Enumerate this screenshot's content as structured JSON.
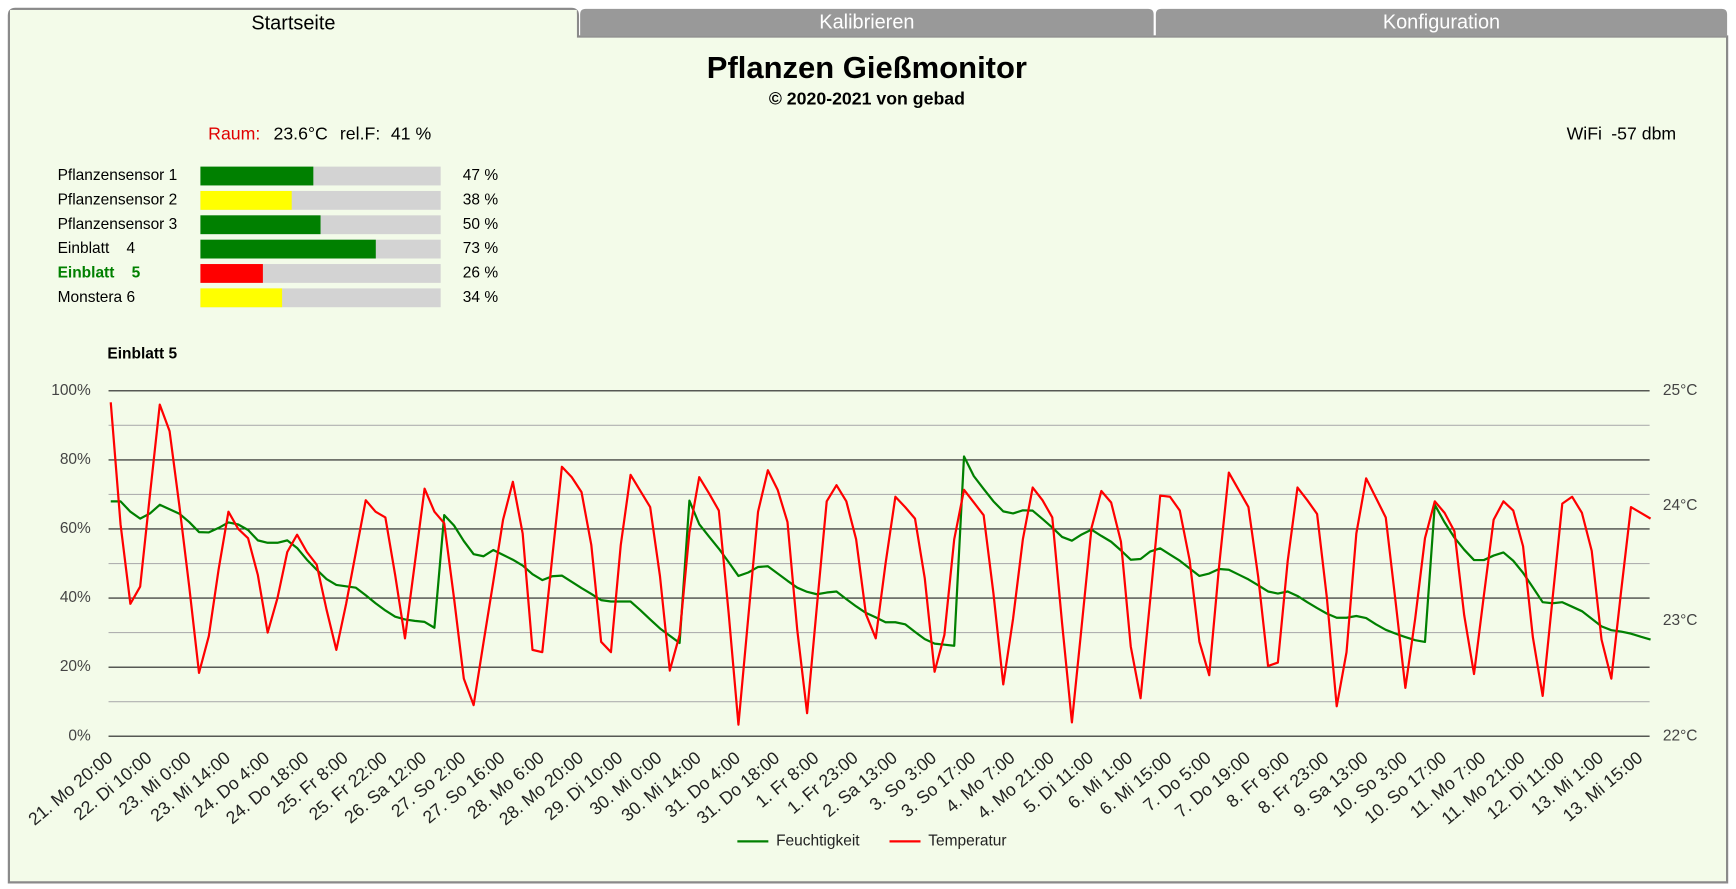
{
  "tabs": [
    "Startseite",
    "Kalibrieren",
    "Konfiguration"
  ],
  "header": {
    "title": "Pflanzen Gießmonitor",
    "subtitle": "© 2020-2021 von gebad"
  },
  "room": {
    "label": "Raum:",
    "temperature": "23.6°C",
    "humidity_label": "rel.F:",
    "humidity": "41 %"
  },
  "wifi": {
    "label": "WiFi",
    "value": "-57 dbm"
  },
  "sensors": [
    {
      "name": "Pflanzensensor 1",
      "value": 47,
      "value_label": "47 %",
      "color": "#008000"
    },
    {
      "name": "Pflanzensensor 2",
      "value": 38,
      "value_label": "38 %",
      "color": "#ffff00"
    },
    {
      "name": "Pflanzensensor 3",
      "value": 50,
      "value_label": "50 %",
      "color": "#008000"
    },
    {
      "name": "Einblatt    4",
      "value": 73,
      "value_label": "73 %",
      "color": "#008000"
    },
    {
      "name": "Einblatt    5",
      "value": 26,
      "value_label": "26 %",
      "color": "#ff0000"
    },
    {
      "name": "Monstera 6",
      "value": 34,
      "value_label": "34 %",
      "color": "#ffff00"
    }
  ],
  "chart_data": {
    "type": "line",
    "title": "Einblatt 5",
    "categories": [
      "21. Mo 20:00",
      null,
      null,
      null,
      "22. Di 10:00",
      null,
      null,
      null,
      "23. Mi 0:00",
      null,
      null,
      null,
      "23. Mi 14:00",
      null,
      null,
      null,
      "24. Do 4:00",
      null,
      null,
      null,
      "24. Do 18:00",
      null,
      null,
      null,
      "25. Fr 8:00",
      null,
      null,
      null,
      "25. Fr 22:00",
      null,
      null,
      null,
      "26. Sa 12:00",
      null,
      null,
      null,
      "27. So 2:00",
      null,
      null,
      null,
      "27. So 16:00",
      null,
      null,
      null,
      "28. Mo 6:00",
      null,
      null,
      null,
      "28. Mo 20:00",
      null,
      null,
      null,
      "29. Di 10:00",
      null,
      null,
      null,
      "30. Mi 0:00",
      null,
      null,
      null,
      "30. Mi 14:00",
      null,
      null,
      null,
      "31. Do 4:00",
      null,
      null,
      null,
      "31. Do 18:00",
      null,
      null,
      null,
      "1. Fr 8:00",
      null,
      null,
      null,
      "1. Fr 23:00",
      null,
      null,
      null,
      "2. Sa 13:00",
      null,
      null,
      null,
      "3. So 3:00",
      null,
      null,
      null,
      "3. So 17:00",
      null,
      null,
      null,
      "4. Mo 7:00",
      null,
      null,
      null,
      "4. Mo 21:00",
      null,
      null,
      null,
      "5. Di 11:00",
      null,
      null,
      null,
      "6. Mi 1:00",
      null,
      null,
      null,
      "6. Mi 15:00",
      null,
      null,
      null,
      "7. Do 5:00",
      null,
      null,
      null,
      "7. Do 19:00",
      null,
      null,
      null,
      "8. Fr 9:00",
      null,
      null,
      null,
      "8. Fr 23:00",
      null,
      null,
      null,
      "9. Sa 13:00",
      null,
      null,
      null,
      "10. So 3:00",
      null,
      null,
      null,
      "10. So 17:00",
      null,
      null,
      null,
      "11. Mo 7:00",
      null,
      null,
      null,
      "11. Mo 21:00",
      null,
      null,
      null,
      "12. Di 11:00",
      null,
      null,
      null,
      "13. Mi 1:00",
      null,
      null,
      null,
      "13. Mi 15:00",
      null
    ],
    "series": [
      {
        "name": "Feuchtigkeit",
        "color": "#008000",
        "axis": "y",
        "values": [
          68,
          68,
          65,
          63,
          64.5,
          67,
          65.7,
          64.4,
          62,
          59.1,
          59,
          60.3,
          61.9,
          61.3,
          59.7,
          56.7,
          56,
          56,
          56.7,
          54.5,
          51.1,
          48.2,
          45.5,
          43.8,
          43.4,
          43,
          40.8,
          38.5,
          36.4,
          34.6,
          33.8,
          33.4,
          33.1,
          31.4,
          64,
          61,
          56.5,
          52.7,
          52.1,
          53.9,
          52.5,
          51.1,
          49.4,
          46.9,
          45.2,
          46.3,
          46.5,
          44.7,
          42.9,
          41.2,
          39.4,
          39,
          39,
          39,
          36.5,
          33.8,
          31.2,
          29.1,
          27,
          68.2,
          61.4,
          57.8,
          54.3,
          50.4,
          46.4,
          47.4,
          49,
          49.2,
          47.1,
          45,
          43,
          41.8,
          41.1,
          41.6,
          41.9,
          39.7,
          37.6,
          35.7,
          34.4,
          33,
          33,
          32.4,
          30.2,
          28.1,
          26.8,
          26.5,
          26.2,
          81,
          75.3,
          71.6,
          68,
          65.1,
          64.5,
          65.4,
          65.3,
          62.9,
          60.4,
          57.7,
          56.6,
          58.4,
          59.8,
          58,
          56.3,
          53.8,
          51.1,
          51.3,
          53.5,
          54.4,
          52.6,
          50.8,
          48.6,
          46.4,
          47.1,
          48.4,
          48.2,
          46.8,
          45.4,
          43.7,
          41.9,
          41.3,
          41.9,
          40.6,
          38.8,
          37.1,
          35.5,
          34.3,
          34.3,
          34.8,
          34.2,
          32.4,
          30.8,
          29.7,
          28.7,
          27.8,
          27.3,
          67,
          61.9,
          57.5,
          54,
          51,
          51,
          52.3,
          53.2,
          50.8,
          47.3,
          43.1,
          38.8,
          38.5,
          38.8,
          37.5,
          36.2,
          34,
          31.8,
          30.7,
          30.3,
          29.7,
          28.8,
          28
        ]
      },
      {
        "name": "Temperatur",
        "color": "#ff0000",
        "axis": "y2",
        "values": [
          24.9,
          23.84,
          23.15,
          23.3,
          24.1,
          24.88,
          24.65,
          24.0,
          23.3,
          22.55,
          22.87,
          23.45,
          23.95,
          23.8,
          23.72,
          23.4,
          22.9,
          23.2,
          23.6,
          23.75,
          23.6,
          23.49,
          23.1,
          22.75,
          23.15,
          23.6,
          24.05,
          23.95,
          23.9,
          23.4,
          22.85,
          23.5,
          24.15,
          23.95,
          23.85,
          23.2,
          22.5,
          22.27,
          22.81,
          23.34,
          23.88,
          24.21,
          23.76,
          22.75,
          22.73,
          23.54,
          24.34,
          24.25,
          24.12,
          23.66,
          22.82,
          22.73,
          23.66,
          24.27,
          24.13,
          23.99,
          23.39,
          22.57,
          22.88,
          23.77,
          24.25,
          24.11,
          23.96,
          23.07,
          22.1,
          23.03,
          23.95,
          24.31,
          24.14,
          23.86,
          22.92,
          22.2,
          23.13,
          24.04,
          24.18,
          24.04,
          23.71,
          23.06,
          22.85,
          23.5,
          24.08,
          23.99,
          23.89,
          23.37,
          22.56,
          22.88,
          23.71,
          24.14,
          24.03,
          23.92,
          23.24,
          22.45,
          23.02,
          23.71,
          24.16,
          24.05,
          23.9,
          22.98,
          22.12,
          22.96,
          23.81,
          24.13,
          24.03,
          23.69,
          22.78,
          22.33,
          23.2,
          24.09,
          24.08,
          23.96,
          23.53,
          22.82,
          22.53,
          23.47,
          24.29,
          24.14,
          23.99,
          23.38,
          22.61,
          22.64,
          23.52,
          24.16,
          24.05,
          23.93,
          23.2,
          22.26,
          22.73,
          23.76,
          24.24,
          24.07,
          23.9,
          23.17,
          22.42,
          23.02,
          23.72,
          24.04,
          23.94,
          23.78,
          23.05,
          22.54,
          23.22,
          23.88,
          24.04,
          23.96,
          23.65,
          22.86,
          22.35,
          23.19,
          24.02,
          24.08,
          23.94,
          23.61,
          22.84,
          22.5,
          23.26,
          23.99,
          23.94,
          23.89
        ]
      }
    ],
    "ylim": [
      0,
      100
    ],
    "yticks": [
      {
        "value": 0,
        "label": "0%"
      },
      {
        "value": 20,
        "label": "20%"
      },
      {
        "value": 40,
        "label": "40%"
      },
      {
        "value": 60,
        "label": "60%"
      },
      {
        "value": 80,
        "label": "80%"
      },
      {
        "value": 100,
        "label": "100%"
      }
    ],
    "y_minor_ticks": [
      10,
      30,
      50,
      70,
      90
    ],
    "y2lim": [
      22,
      25
    ],
    "y2ticks": [
      {
        "value": 22,
        "label": "22°C"
      },
      {
        "value": 23,
        "label": "23°C"
      },
      {
        "value": 24,
        "label": "24°C"
      },
      {
        "value": 25,
        "label": "25°C"
      }
    ],
    "grid": true,
    "legend": "bottom"
  }
}
